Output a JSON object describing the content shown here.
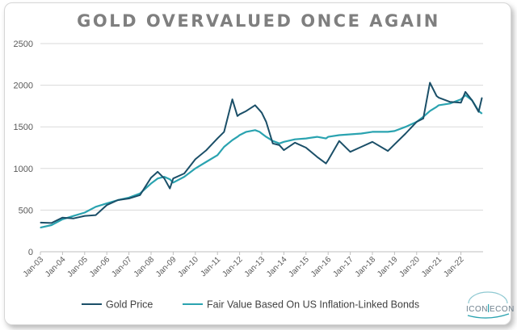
{
  "chart_data": {
    "type": "line",
    "title": "GOLD OVERVALUED ONCE AGAIN",
    "xlabel": "",
    "ylabel": "",
    "ylim": [
      0,
      2500
    ],
    "yticks": [
      "0",
      "500",
      "1000",
      "1500",
      "2000",
      "2500"
    ],
    "x": [
      2003.0,
      2003.5,
      2004.0,
      2004.5,
      2005.0,
      2005.5,
      2006.0,
      2006.5,
      2007.0,
      2007.5,
      2008.0,
      2008.3,
      2008.6,
      2008.85,
      2009.0,
      2009.5,
      2010.0,
      2010.5,
      2011.0,
      2011.3,
      2011.67,
      2011.9,
      2012.0,
      2012.3,
      2012.7,
      2012.9,
      2013.0,
      2013.2,
      2013.5,
      2013.8,
      2014.0,
      2014.5,
      2015.0,
      2015.5,
      2015.9,
      2016.0,
      2016.5,
      2017.0,
      2017.5,
      2018.0,
      2018.7,
      2019.0,
      2019.5,
      2020.0,
      2020.3,
      2020.6,
      2020.9,
      2021.0,
      2021.5,
      2022.0,
      2022.2,
      2022.5,
      2022.8,
      2022.95
    ],
    "x_ticks": [
      "Jan-03",
      "Jan-04",
      "Jan-05",
      "Jan-06",
      "Jan-07",
      "Jan-08",
      "Jan-09",
      "Jan-10",
      "Jan-11",
      "Jan-12",
      "Jan-13",
      "Jan-14",
      "Jan-15",
      "Jan-16",
      "Jan-17",
      "Jan-18",
      "Jan-19",
      "Jan-20",
      "Jan-21",
      "Jan-22"
    ],
    "x_tick_values": [
      2003,
      2004,
      2005,
      2006,
      2007,
      2008,
      2009,
      2010,
      2011,
      2012,
      2013,
      2014,
      2015,
      2016,
      2017,
      2018,
      2019,
      2020,
      2021,
      2022
    ],
    "xlim": [
      2003.0,
      2023.0
    ],
    "series": [
      {
        "name": "Gold Price",
        "color": "#1b4f68",
        "values": [
          350,
          345,
          410,
          400,
          430,
          440,
          560,
          620,
          640,
          680,
          890,
          960,
          880,
          760,
          880,
          940,
          1110,
          1220,
          1360,
          1440,
          1830,
          1630,
          1650,
          1690,
          1760,
          1700,
          1670,
          1560,
          1300,
          1280,
          1220,
          1310,
          1250,
          1140,
          1060,
          1100,
          1330,
          1200,
          1260,
          1320,
          1210,
          1290,
          1420,
          1560,
          1600,
          2030,
          1870,
          1850,
          1800,
          1790,
          1920,
          1820,
          1680,
          1850
        ]
      },
      {
        "name": "Fair Value Based On US Inflation-Linked Bonds",
        "color": "#2aa3b0",
        "values": [
          290,
          320,
          390,
          430,
          470,
          540,
          580,
          620,
          650,
          700,
          820,
          880,
          900,
          870,
          830,
          900,
          1000,
          1080,
          1160,
          1260,
          1340,
          1380,
          1400,
          1440,
          1460,
          1440,
          1420,
          1380,
          1330,
          1300,
          1320,
          1350,
          1360,
          1380,
          1360,
          1380,
          1400,
          1410,
          1420,
          1440,
          1440,
          1450,
          1500,
          1560,
          1620,
          1690,
          1740,
          1760,
          1780,
          1830,
          1880,
          1820,
          1690,
          1660
        ]
      }
    ],
    "legend_position": "bottom"
  },
  "logo": {
    "left": "ICON",
    "right": "ECON"
  }
}
